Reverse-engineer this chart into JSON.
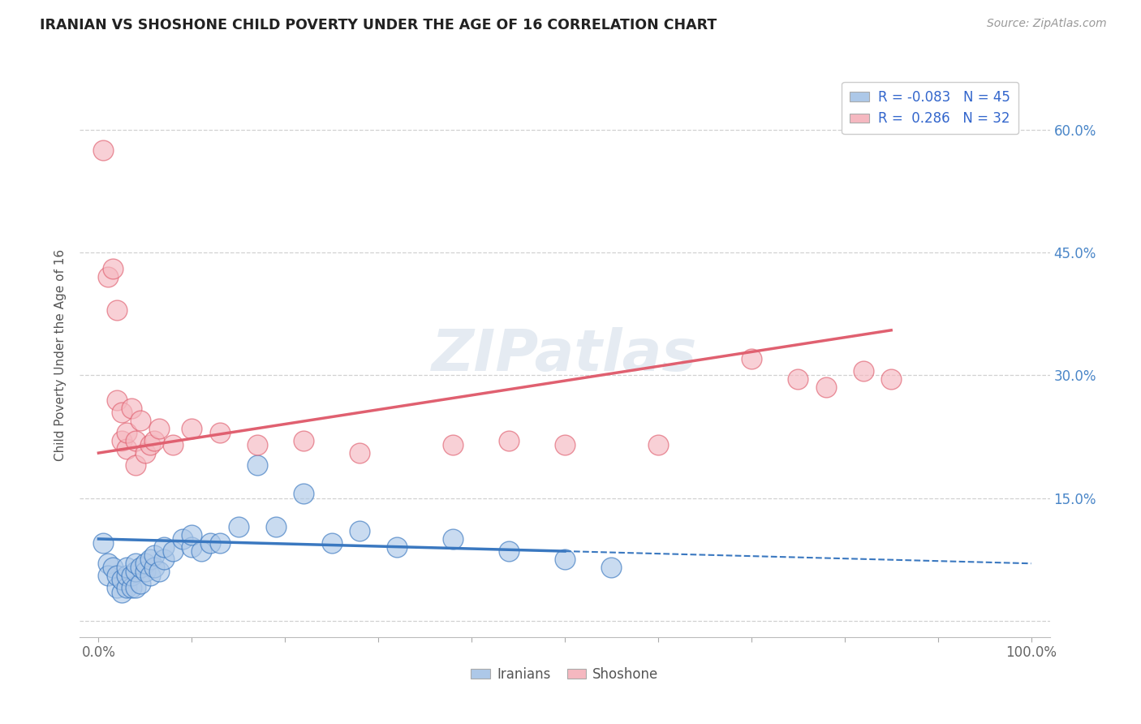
{
  "title": "IRANIAN VS SHOSHONE CHILD POVERTY UNDER THE AGE OF 16 CORRELATION CHART",
  "source": "Source: ZipAtlas.com",
  "ylabel": "Child Poverty Under the Age of 16",
  "xlim": [
    -0.02,
    1.02
  ],
  "ylim": [
    -0.02,
    0.67
  ],
  "xticks": [
    0.0,
    0.1,
    0.2,
    0.3,
    0.4,
    0.5,
    0.6,
    0.7,
    0.8,
    0.9,
    1.0
  ],
  "xticklabels": [
    "0.0%",
    "",
    "",
    "",
    "",
    "",
    "",
    "",
    "",
    "",
    "100.0%"
  ],
  "yticks": [
    0.0,
    0.15,
    0.3,
    0.45,
    0.6
  ],
  "yticklabels": [
    "",
    "15.0%",
    "30.0%",
    "45.0%",
    "60.0%"
  ],
  "iranians_color": "#adc8e8",
  "shoshone_color": "#f5b8c0",
  "iranians_line_color": "#3a78c0",
  "shoshone_line_color": "#e06070",
  "legend_R_iranians": "-0.083",
  "legend_N_iranians": "45",
  "legend_R_shoshone": "0.286",
  "legend_N_shoshone": "32",
  "watermark": "ZIPatlas",
  "iranians_x": [
    0.005,
    0.01,
    0.01,
    0.015,
    0.02,
    0.02,
    0.025,
    0.025,
    0.03,
    0.03,
    0.03,
    0.035,
    0.035,
    0.04,
    0.04,
    0.04,
    0.045,
    0.045,
    0.05,
    0.05,
    0.055,
    0.055,
    0.06,
    0.06,
    0.065,
    0.07,
    0.07,
    0.08,
    0.09,
    0.1,
    0.1,
    0.11,
    0.12,
    0.13,
    0.15,
    0.17,
    0.19,
    0.22,
    0.25,
    0.28,
    0.32,
    0.38,
    0.44,
    0.5,
    0.55
  ],
  "iranians_y": [
    0.095,
    0.07,
    0.055,
    0.065,
    0.04,
    0.055,
    0.035,
    0.05,
    0.04,
    0.055,
    0.065,
    0.04,
    0.055,
    0.04,
    0.06,
    0.07,
    0.045,
    0.065,
    0.06,
    0.07,
    0.055,
    0.075,
    0.065,
    0.08,
    0.06,
    0.075,
    0.09,
    0.085,
    0.1,
    0.09,
    0.105,
    0.085,
    0.095,
    0.095,
    0.115,
    0.19,
    0.115,
    0.155,
    0.095,
    0.11,
    0.09,
    0.1,
    0.085,
    0.075,
    0.065
  ],
  "shoshone_x": [
    0.005,
    0.01,
    0.015,
    0.02,
    0.02,
    0.025,
    0.025,
    0.03,
    0.03,
    0.035,
    0.04,
    0.04,
    0.045,
    0.05,
    0.055,
    0.06,
    0.065,
    0.08,
    0.1,
    0.13,
    0.17,
    0.22,
    0.28,
    0.38,
    0.44,
    0.5,
    0.6,
    0.7,
    0.75,
    0.78,
    0.82,
    0.85
  ],
  "shoshone_y": [
    0.575,
    0.42,
    0.43,
    0.38,
    0.27,
    0.22,
    0.255,
    0.21,
    0.23,
    0.26,
    0.19,
    0.22,
    0.245,
    0.205,
    0.215,
    0.22,
    0.235,
    0.215,
    0.235,
    0.23,
    0.215,
    0.22,
    0.205,
    0.215,
    0.22,
    0.215,
    0.215,
    0.32,
    0.295,
    0.285,
    0.305,
    0.295
  ],
  "iran_line_x0": 0.0,
  "iran_line_x1": 0.5,
  "iran_line_x_dash_end": 1.0,
  "iran_line_y0": 0.1,
  "iran_line_y1": 0.085,
  "shosh_line_x0": 0.0,
  "shosh_line_x1": 0.85,
  "shosh_line_y0": 0.205,
  "shosh_line_y1": 0.355
}
